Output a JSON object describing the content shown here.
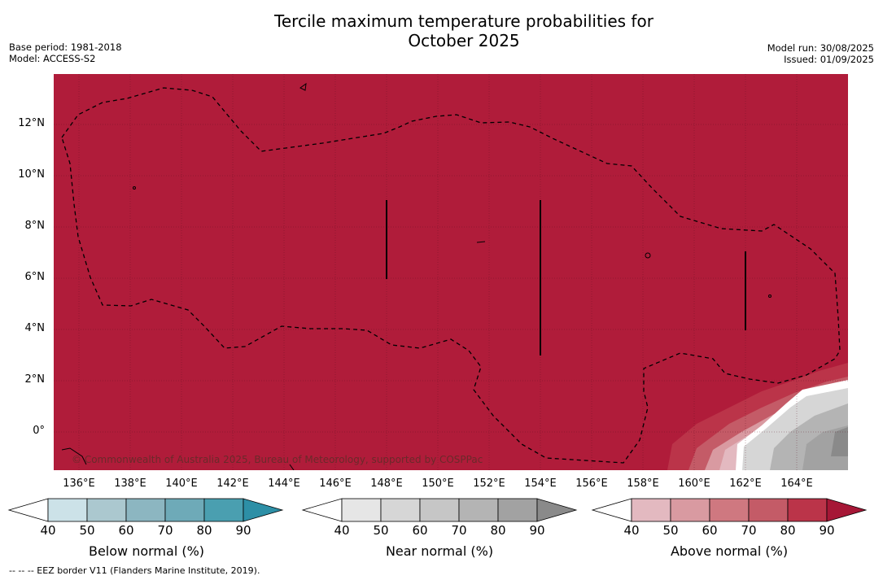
{
  "title": {
    "line1": "Tercile maximum temperature probabilities for",
    "line2": "October 2025"
  },
  "meta": {
    "base_period": "Base period: 1981-2018",
    "model": "Model: ACCESS-S2",
    "model_run": "Model run: 30/08/2025",
    "issued": "Issued: 01/09/2025"
  },
  "map": {
    "copyright": "© Commonwealth of Australia 2025, Bureau of Meteorology, supported by COSPPac",
    "lat_labels": [
      "12°N",
      "10°N",
      "8°N",
      "6°N",
      "4°N",
      "2°N",
      "0°"
    ],
    "lon_labels": [
      "136°E",
      "138°E",
      "140°E",
      "142°E",
      "144°E",
      "146°E",
      "148°E",
      "150°E",
      "152°E",
      "154°E",
      "156°E",
      "158°E",
      "160°E",
      "162°E",
      "164°E"
    ],
    "fill_color": "#b01c3a"
  },
  "colorbars": [
    {
      "label": "Below normal (%)",
      "ticks": [
        "40",
        "50",
        "60",
        "70",
        "80",
        "90"
      ],
      "colors": [
        "#ffffff",
        "#cce2e8",
        "#abc8cf",
        "#8cb6c1",
        "#6eaab8",
        "#4a9fb0",
        "#2d8fa6"
      ]
    },
    {
      "label": "Near normal (%)",
      "ticks": [
        "40",
        "50",
        "60",
        "70",
        "80",
        "90"
      ],
      "colors": [
        "#ffffff",
        "#e6e6e6",
        "#d6d6d6",
        "#c6c6c6",
        "#b4b4b4",
        "#a2a2a2",
        "#8a8a8a"
      ]
    },
    {
      "label": "Above normal (%)",
      "ticks": [
        "40",
        "50",
        "60",
        "70",
        "80",
        "90"
      ],
      "colors": [
        "#ffffff",
        "#e3b9c0",
        "#d99aa1",
        "#cf7880",
        "#c45b67",
        "#bb3449",
        "#a61736"
      ]
    }
  ],
  "footer": "--  --  -- EEZ border V11 (Flanders Marine Institute, 2019)."
}
